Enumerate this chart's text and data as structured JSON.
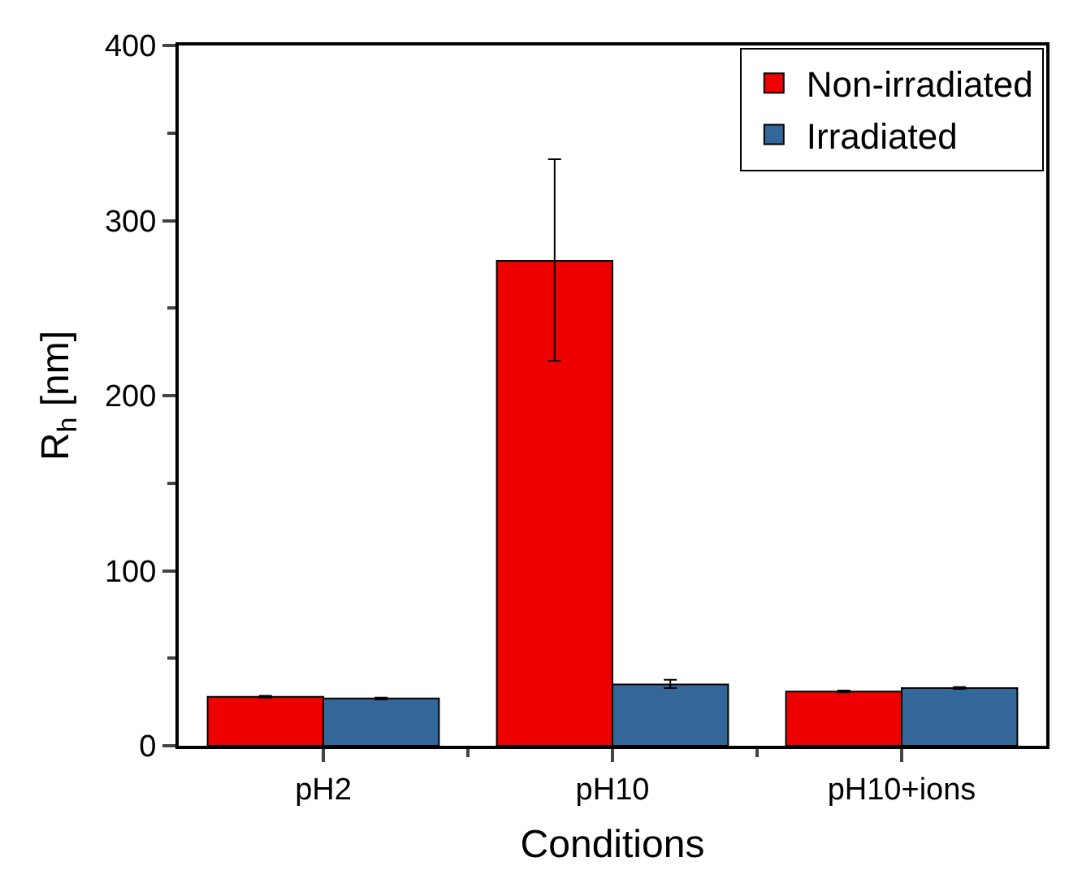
{
  "chart_data": {
    "type": "bar",
    "xlabel": "Conditions",
    "ylabel": "R$_{h}$ [nm]",
    "categories": [
      "pH2",
      "pH10",
      "pH10+ions"
    ],
    "series": [
      {
        "name": "Non-irradiated",
        "color": "#ee0000",
        "values": [
          28,
          277,
          31
        ],
        "errors": [
          0.5,
          [
            220,
            335
          ],
          0.5
        ]
      },
      {
        "name": "Irradiated",
        "color": "#336699",
        "values": [
          27,
          35,
          33
        ],
        "errors": [
          0.5,
          [
            33,
            37.7
          ],
          0.5
        ]
      }
    ],
    "ylim": [
      0,
      400
    ],
    "yticks": [
      0,
      100,
      200,
      300,
      400
    ],
    "legend": "top right"
  }
}
